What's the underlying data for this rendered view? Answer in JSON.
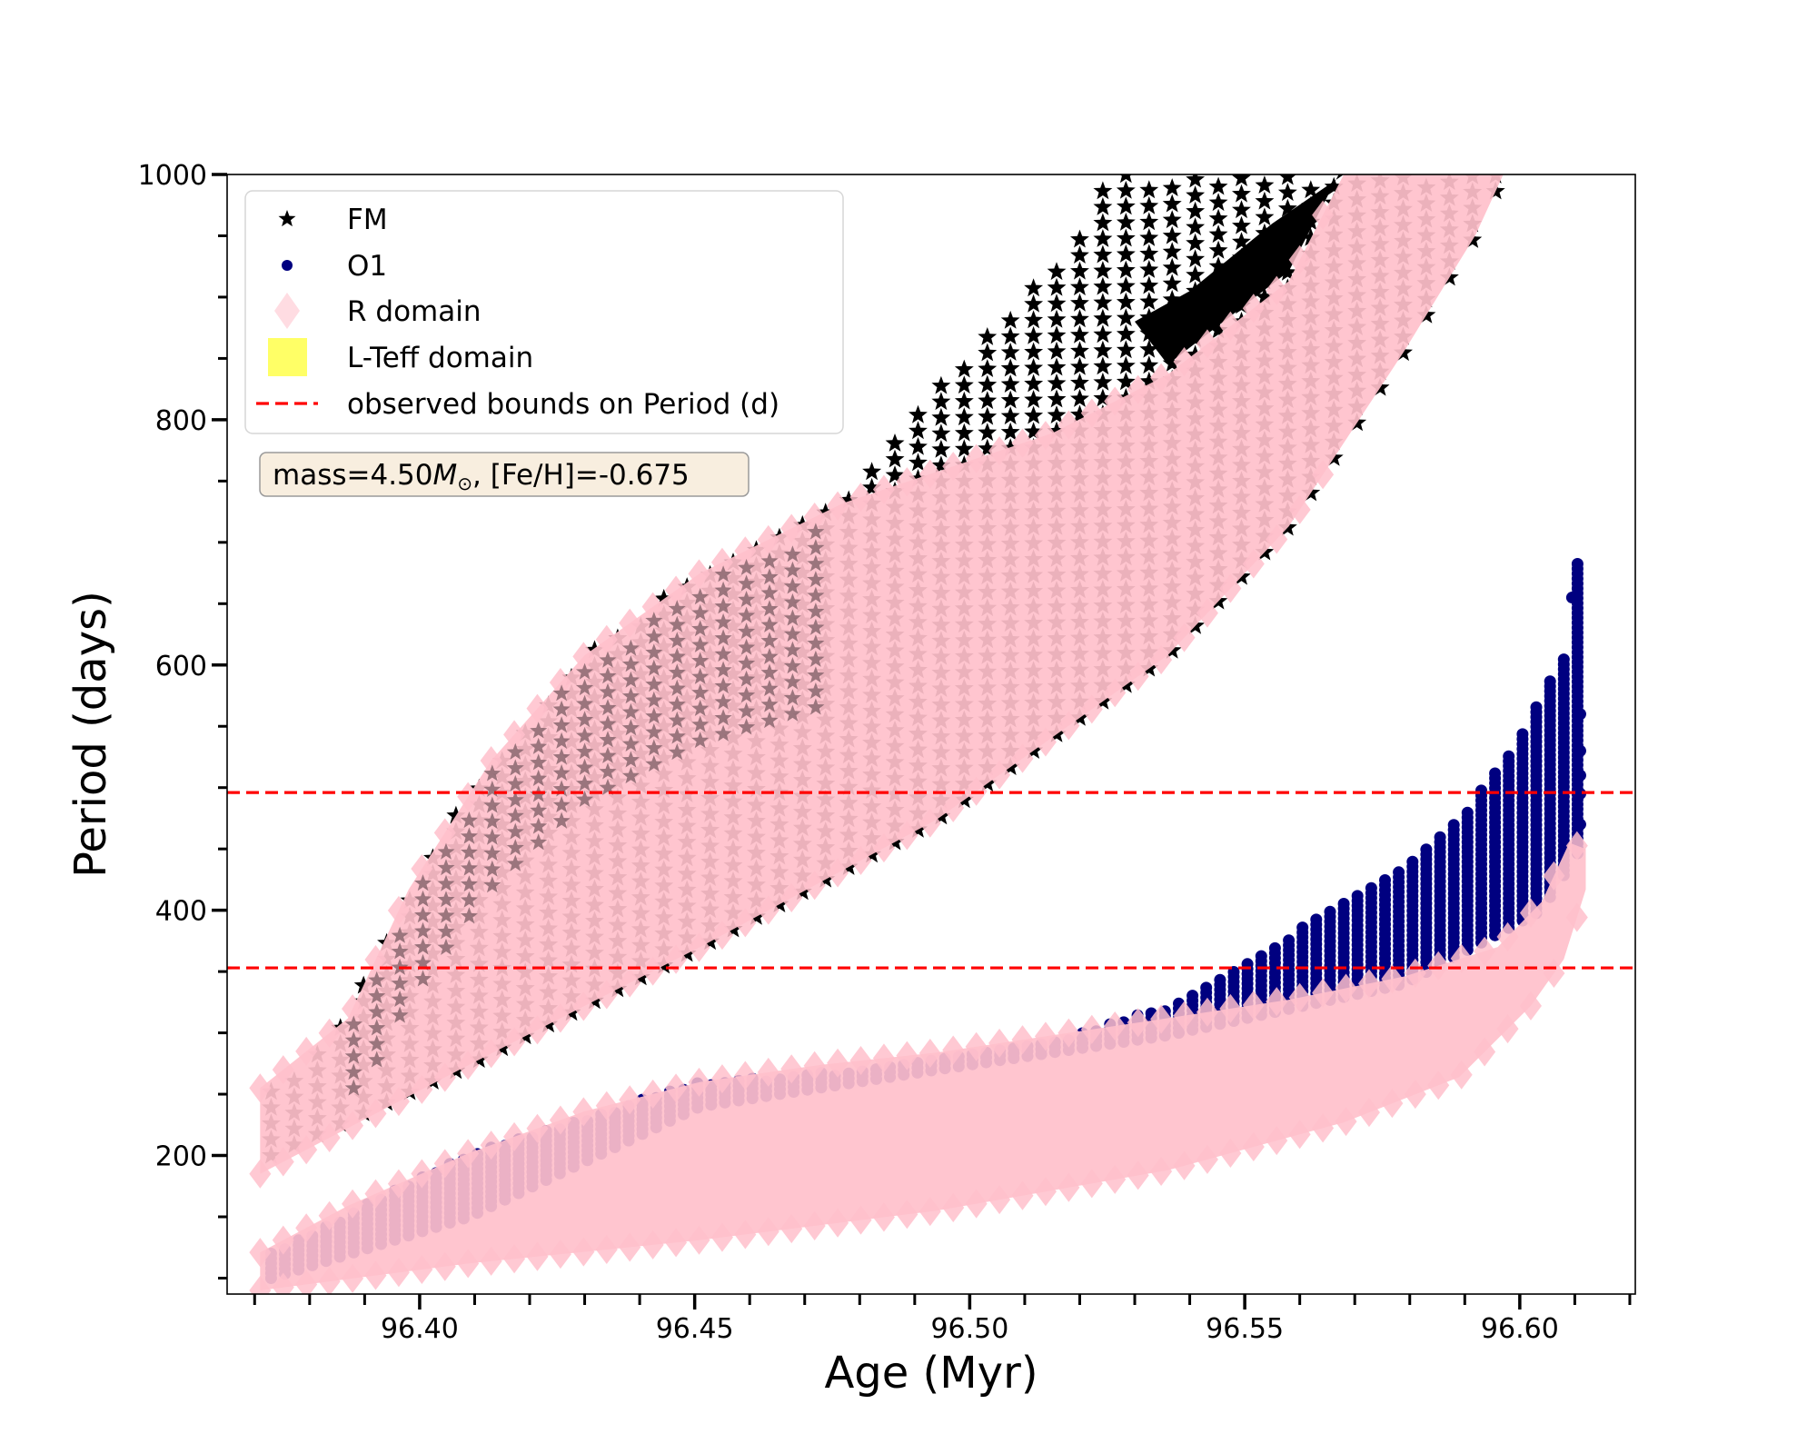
{
  "chart_data": {
    "type": "scatter",
    "title": "",
    "xlabel": "Age (Myr)",
    "ylabel": "Period (days)",
    "xlim": [
      96.365,
      96.621
    ],
    "ylim": [
      87,
      1000
    ],
    "grid": false,
    "xticks": [
      96.4,
      96.45,
      96.5,
      96.55,
      96.6
    ],
    "xtick_labels": [
      "96.40",
      "96.45",
      "96.50",
      "96.55",
      "96.60"
    ],
    "x_minor_step": 0.01,
    "yticks": [
      200,
      400,
      600,
      800,
      1000
    ],
    "ytick_labels": [
      "200",
      "400",
      "600",
      "800",
      "1000"
    ],
    "y_minor_step": 50,
    "legend": {
      "placement": "upper-left",
      "entries": [
        {
          "label": "FM",
          "marker": "star",
          "color": "#000000"
        },
        {
          "label": "O1",
          "marker": "circle",
          "color": "#000080"
        },
        {
          "label": "R domain",
          "marker": "diamond",
          "color": "#ffc0cb"
        },
        {
          "label": "L-Teff domain",
          "marker": "square",
          "color": "#ffff66"
        },
        {
          "label": "observed bounds on Period (d)",
          "marker": "dashed-line",
          "color": "#ff0000"
        }
      ]
    },
    "annotation": {
      "text_prefix": "mass=4.50",
      "text_symbol": "M",
      "text_subscript": "⊙",
      "text_suffix": ", [Fe/H]=-0.675",
      "box_color": "#faefe0",
      "placement": "upper-left, below legend"
    },
    "hlines": [
      {
        "label": "observed bounds on Period (d)",
        "y": 496,
        "color": "#ff0000",
        "style": "dashed"
      },
      {
        "label": "observed bounds on Period (d)",
        "y": 353,
        "color": "#ff0000",
        "style": "dashed"
      }
    ],
    "series": [
      {
        "name": "FM",
        "marker": "star",
        "color": "#000000",
        "envelope_upper": [
          [
            96.373,
            255
          ],
          [
            96.387,
            312
          ],
          [
            96.398,
            417
          ],
          [
            96.413,
            522
          ],
          [
            96.43,
            608
          ],
          [
            96.451,
            675
          ],
          [
            96.476,
            732
          ],
          [
            96.494,
            827
          ],
          [
            96.515,
            923
          ],
          [
            96.526,
            1000
          ]
        ],
        "envelope_lower": [
          [
            96.373,
            200
          ],
          [
            96.409,
            274
          ],
          [
            96.451,
            370
          ],
          [
            96.494,
            474
          ],
          [
            96.536,
            608
          ],
          [
            96.558,
            713
          ],
          [
            96.579,
            856
          ],
          [
            96.592,
            951
          ],
          [
            96.597,
            1000
          ]
        ]
      },
      {
        "name": "R domain (FM band)",
        "marker": "diamond",
        "color": "#ffc0cb",
        "envelope_upper": [
          [
            96.371,
            255
          ],
          [
            96.387,
            312
          ],
          [
            96.398,
            417
          ],
          [
            96.413,
            522
          ],
          [
            96.43,
            608
          ],
          [
            96.451,
            675
          ],
          [
            96.477,
            732
          ],
          [
            96.515,
            789
          ],
          [
            96.536,
            837
          ],
          [
            96.558,
            913
          ],
          [
            96.568,
            1000
          ]
        ],
        "envelope_lower": [
          [
            96.371,
            185
          ],
          [
            96.409,
            274
          ],
          [
            96.451,
            370
          ],
          [
            96.494,
            474
          ],
          [
            96.536,
            608
          ],
          [
            96.558,
            713
          ],
          [
            96.579,
            856
          ],
          [
            96.592,
            951
          ],
          [
            96.597,
            1000
          ]
        ]
      },
      {
        "name": "O1",
        "marker": "circle",
        "color": "#000080",
        "envelope_upper": [
          [
            96.373,
            121
          ],
          [
            96.409,
            202
          ],
          [
            96.451,
            260
          ],
          [
            96.485,
            272
          ],
          [
            96.515,
            293
          ],
          [
            96.536,
            322
          ],
          [
            96.547,
            350
          ],
          [
            96.558,
            379
          ],
          [
            96.568,
            407
          ],
          [
            96.579,
            436
          ],
          [
            96.589,
            474
          ],
          [
            96.6,
            541
          ],
          [
            96.608,
            608
          ],
          [
            96.609,
            694
          ],
          [
            96.611,
            683
          ]
        ],
        "envelope_lower": [
          [
            96.373,
            100
          ],
          [
            96.409,
            150
          ],
          [
            96.451,
            240
          ],
          [
            96.494,
            270
          ],
          [
            96.536,
            298
          ],
          [
            96.579,
            340
          ],
          [
            96.604,
            400
          ],
          [
            96.611,
            450
          ]
        ]
      },
      {
        "name": "R domain (O1 band)",
        "marker": "diamond",
        "color": "#ffc0cb",
        "envelope_upper": [
          [
            96.371,
            121
          ],
          [
            96.387,
            159
          ],
          [
            96.409,
            202
          ],
          [
            96.43,
            236
          ],
          [
            96.451,
            260
          ],
          [
            96.473,
            274
          ],
          [
            96.494,
            284
          ],
          [
            96.515,
            298
          ],
          [
            96.536,
            312
          ],
          [
            96.558,
            327
          ],
          [
            96.579,
            346
          ],
          [
            96.596,
            370
          ],
          [
            96.604,
            407
          ],
          [
            96.609,
            455
          ],
          [
            96.612,
            450
          ]
        ],
        "envelope_lower": [
          [
            96.371,
            90
          ],
          [
            96.409,
            112
          ],
          [
            96.451,
            131
          ],
          [
            96.494,
            155
          ],
          [
            96.536,
            188
          ],
          [
            96.568,
            227
          ],
          [
            96.589,
            264
          ],
          [
            96.602,
            322
          ],
          [
            96.608,
            360
          ],
          [
            96.612,
            417
          ]
        ]
      },
      {
        "name": "L-Teff domain",
        "marker": "square",
        "color": "#ffff66",
        "points": []
      }
    ]
  }
}
